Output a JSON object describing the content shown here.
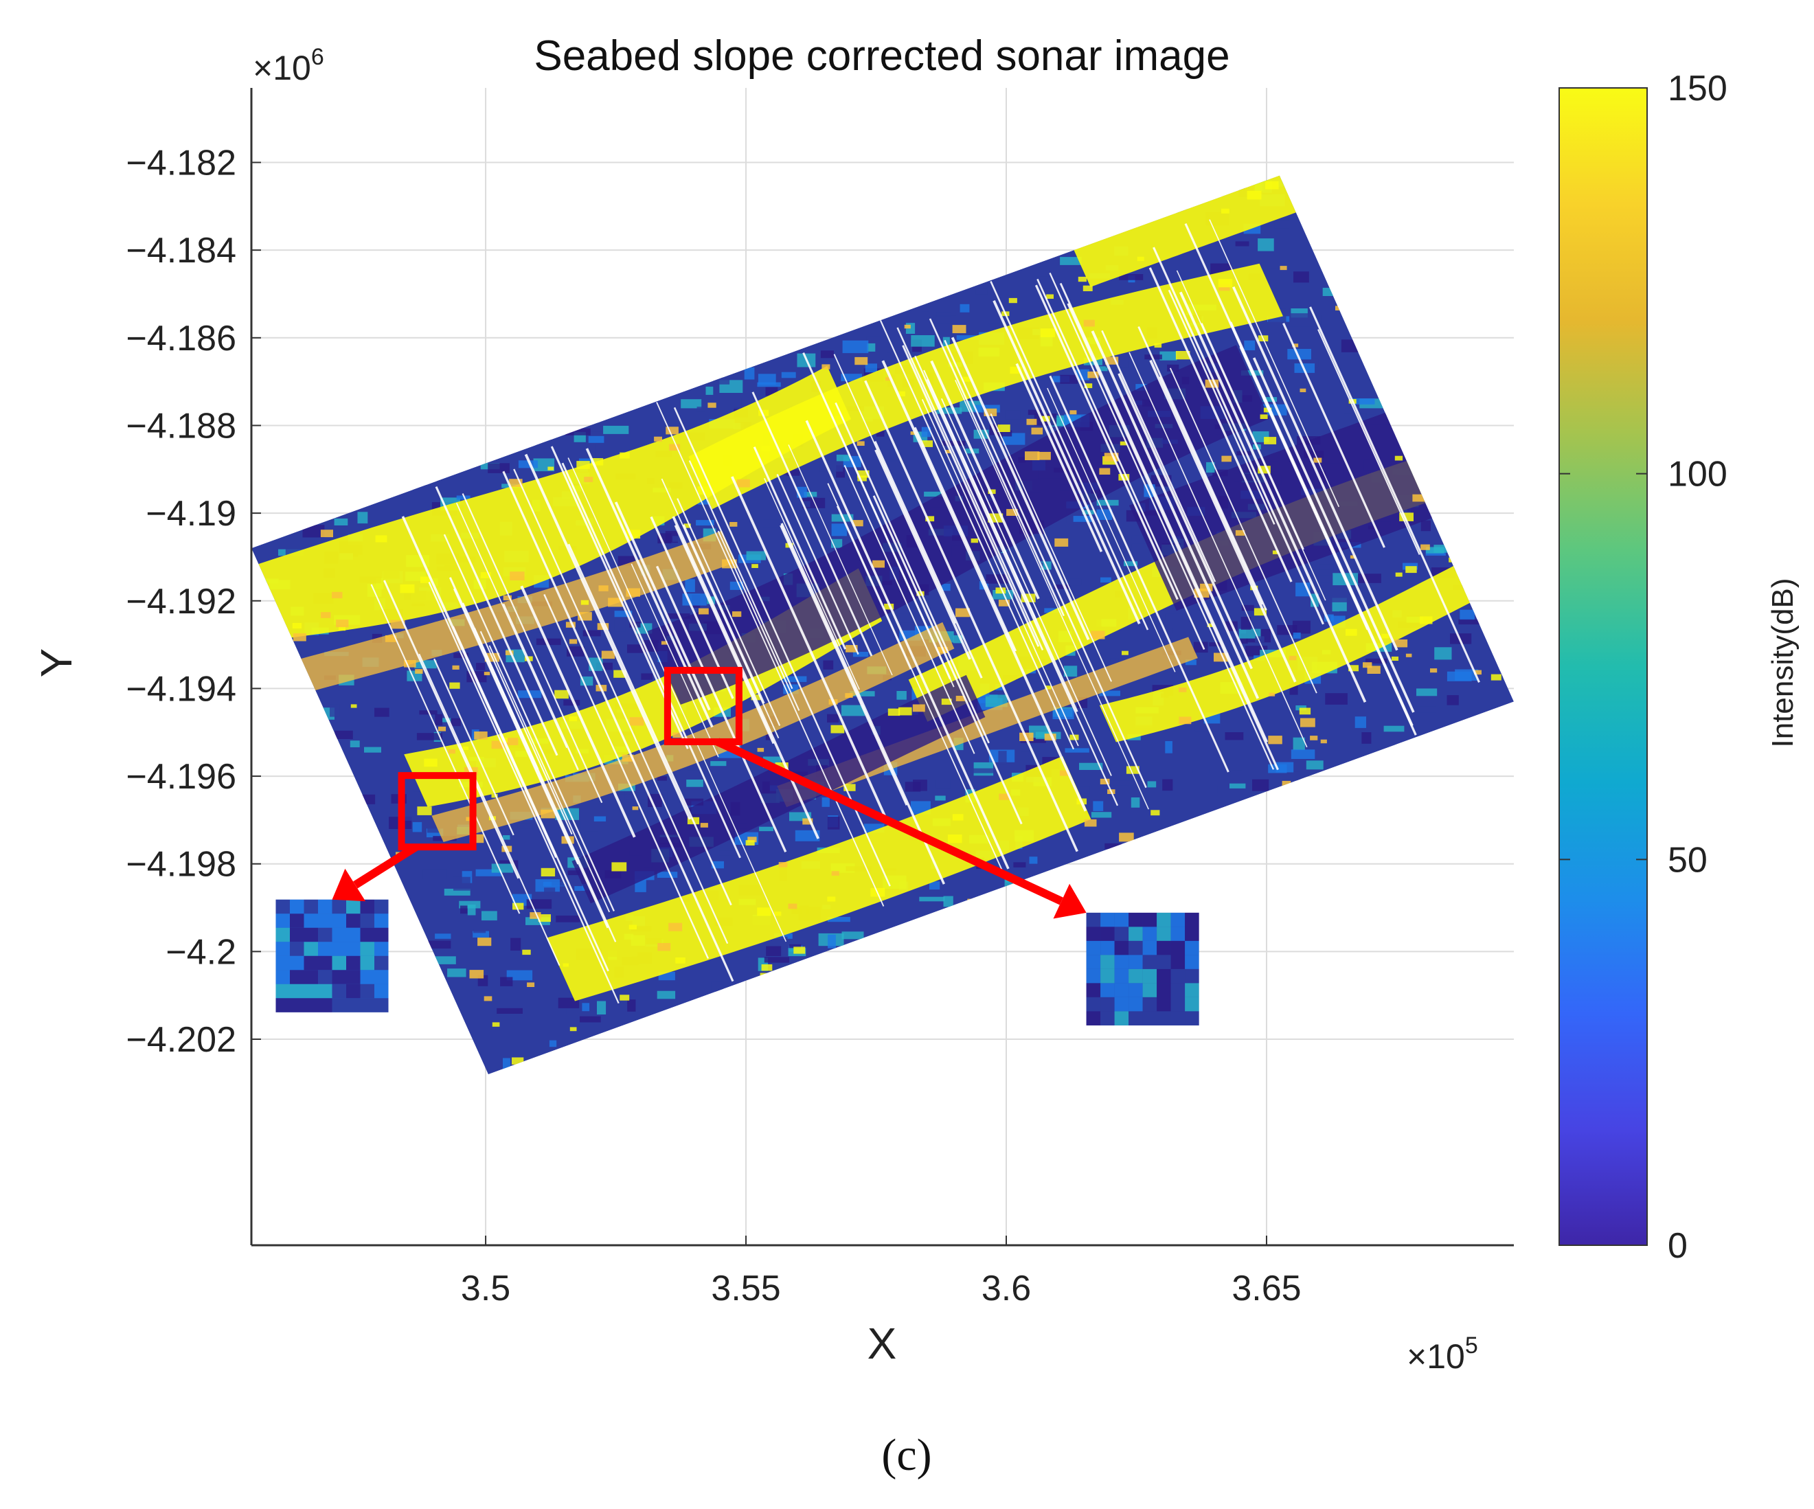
{
  "chart_data": {
    "type": "heatmap",
    "title": "Seabed slope corrected sonar image",
    "xlabel": "X",
    "ylabel": "Y",
    "x_ticks": [
      "3.5",
      "3.55",
      "3.6",
      "3.65"
    ],
    "x_tick_values": [
      3.5,
      3.55,
      3.6,
      3.65
    ],
    "y_ticks": [
      "−4.182",
      "−4.184",
      "−4.186",
      "−4.188",
      "−4.19",
      "−4.192",
      "−4.194",
      "−4.196",
      "−4.198",
      "−4.2",
      "−4.202"
    ],
    "y_tick_values": [
      -4.182,
      -4.184,
      -4.186,
      -4.188,
      -4.19,
      -4.192,
      -4.194,
      -4.196,
      -4.198,
      -4.2,
      -4.202
    ],
    "xlim": [
      3.455,
      3.6975
    ],
    "ylim": [
      -4.2067,
      -4.1803
    ],
    "x_multiplier_base": "×10",
    "x_multiplier_exp": "5",
    "y_multiplier_base": "×10",
    "y_multiplier_exp": "6",
    "grid": true,
    "swath_polygon": [
      [
        3.455,
        -4.1908
      ],
      [
        3.6525,
        -4.1823
      ],
      [
        3.6975,
        -4.1943
      ],
      [
        3.5005,
        -4.2028
      ]
    ],
    "colorbar": {
      "label": "Intensity(dB)",
      "ticks": [
        "150",
        "100",
        "50",
        "0"
      ],
      "tick_values": [
        150,
        100,
        50,
        0
      ],
      "range": [
        0,
        150
      ],
      "colormap": "parula"
    },
    "highlight_boxes": [
      {
        "x_center": 3.4907,
        "y_center": -4.1968,
        "zoom_center": [
          3.4705,
          -4.2001
        ]
      },
      {
        "x_center": 3.5418,
        "y_center": -4.1944,
        "zoom_center": [
          3.6262,
          -4.2004
        ]
      }
    ],
    "colors": {
      "yellow": "#F9FB0E",
      "orange": "#FCC23A",
      "teal": "#28B1C8",
      "blue": "#1E78E5",
      "deep_blue": "#2D3C9F",
      "navy": "#2B1C86",
      "highlight": "#FF0000"
    }
  },
  "caption": "(c)"
}
